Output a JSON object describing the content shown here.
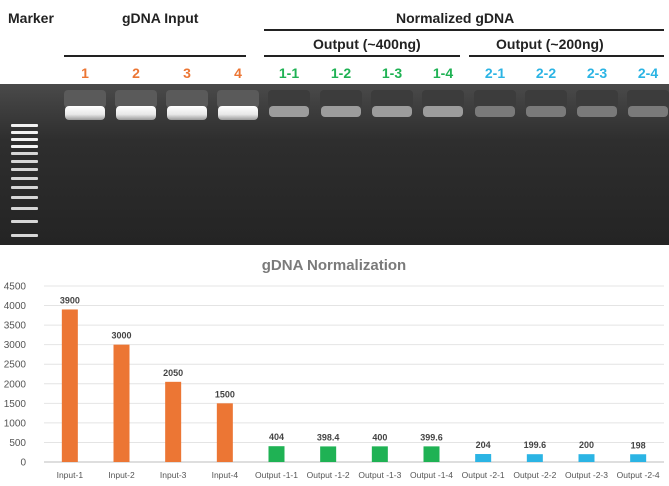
{
  "header": {
    "marker_label": "Marker",
    "gdna_input_label": "gDNA Input",
    "normalized_label": "Normalized gDNA",
    "output1_label": "Output (~400ng)",
    "output2_label": "Output (~200ng)"
  },
  "lanes": [
    {
      "label": "1",
      "group": "input"
    },
    {
      "label": "2",
      "group": "input"
    },
    {
      "label": "3",
      "group": "input"
    },
    {
      "label": "4",
      "group": "input"
    },
    {
      "label": "1-1",
      "group": "out400"
    },
    {
      "label": "1-2",
      "group": "out400"
    },
    {
      "label": "1-3",
      "group": "out400"
    },
    {
      "label": "1-4",
      "group": "out400"
    },
    {
      "label": "2-1",
      "group": "out200"
    },
    {
      "label": "2-2",
      "group": "out200"
    },
    {
      "label": "2-3",
      "group": "out200"
    },
    {
      "label": "2-4",
      "group": "out200"
    }
  ],
  "colors": {
    "input": "#ec7634",
    "out400": "#1fb254",
    "out200": "#2bb4e4",
    "gel_bg": "#2a2a2a"
  },
  "chart_data": {
    "type": "bar",
    "title": "gDNA Normalization",
    "xlabel": "",
    "ylabel": "",
    "ylim": [
      0,
      4500
    ],
    "yticks": [
      0,
      500,
      1000,
      1500,
      2000,
      2500,
      3000,
      3500,
      4000,
      4500
    ],
    "grid": true,
    "legend": "none",
    "categories": [
      "Input-1",
      "Input-2",
      "Input-3",
      "Input-4",
      "Output -1-1",
      "Output -1-2",
      "Output -1-3",
      "Output -1-4",
      "Output -2-1",
      "Output -2-2",
      "Output -2-3",
      "Output -2-4"
    ],
    "values": [
      3900,
      3000,
      2050,
      1500,
      404,
      398.4,
      400,
      399.6,
      204,
      199.6,
      200,
      198
    ],
    "value_labels": [
      "3900",
      "3000",
      "2050",
      "1500",
      "404",
      "398.4",
      "400",
      "399.6",
      "204",
      "199.6",
      "200",
      "198"
    ],
    "bar_colors": [
      "#ec7634",
      "#ec7634",
      "#ec7634",
      "#ec7634",
      "#1fb254",
      "#1fb254",
      "#1fb254",
      "#1fb254",
      "#2bb4e4",
      "#2bb4e4",
      "#2bb4e4",
      "#2bb4e4"
    ]
  }
}
